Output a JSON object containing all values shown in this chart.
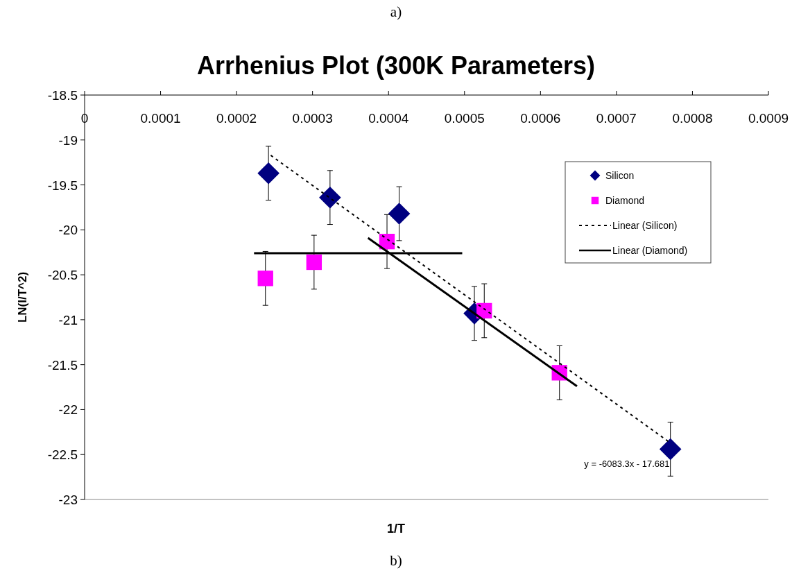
{
  "chart_data": {
    "type": "scatter",
    "title": "Arrhenius Plot (300K Parameters)",
    "xlabel": "1/T",
    "ylabel": "LN(I/T^2)",
    "xlim": [
      0,
      0.0009
    ],
    "xticks": [
      0,
      0.0001,
      0.0002,
      0.0003,
      0.0004,
      0.0005,
      0.0006,
      0.0007,
      0.0008,
      0.0009
    ],
    "ylim": [
      -23,
      -18.5
    ],
    "yticks": [
      -18.5,
      -19,
      -19.5,
      -20,
      -20.5,
      -21,
      -21.5,
      -22,
      -22.5,
      -23
    ],
    "grid": false,
    "legend": "top right",
    "series": [
      {
        "name": "Silicon",
        "marker": "diamond",
        "color": "#000080",
        "x": [
          0.000242,
          0.000323,
          0.000414,
          0.000513,
          0.000771
        ],
        "values": [
          -19.37,
          -19.64,
          -19.82,
          -20.93,
          -22.44
        ],
        "errors": [
          0.3,
          0.3,
          0.3,
          0.3,
          0.3
        ]
      },
      {
        "name": "Diamond",
        "marker": "square",
        "color": "#ff00ff",
        "x": [
          0.000238,
          0.000302,
          0.000398,
          0.000526,
          0.000625
        ],
        "values": [
          -20.54,
          -20.36,
          -20.13,
          -20.9,
          -21.59
        ],
        "errors": [
          0.3,
          0.3,
          0.3,
          0.3,
          0.3
        ]
      },
      {
        "name": "Linear (Silicon)",
        "type": "line",
        "line_style": "dashed",
        "color": "#000000",
        "x": [
          0.000245,
          0.00077
        ],
        "values": [
          -19.171,
          -22.365
        ]
      },
      {
        "name": "Linear (Diamond)",
        "type": "line",
        "line_style": "solid",
        "color": "#000000",
        "x": [
          0.000223,
          0.000497
        ],
        "values": [
          -20.26,
          -20.26
        ]
      },
      {
        "type": "line",
        "line_style": "solid",
        "color": "#000000",
        "x": [
          0.000373,
          0.000648
        ],
        "values": [
          -20.09,
          -21.74
        ]
      }
    ],
    "annotations": [
      "a)",
      "b)",
      {
        "text": "y = -6083.3x - 17.681",
        "x": 0.00077,
        "y": -22.6
      }
    ]
  }
}
